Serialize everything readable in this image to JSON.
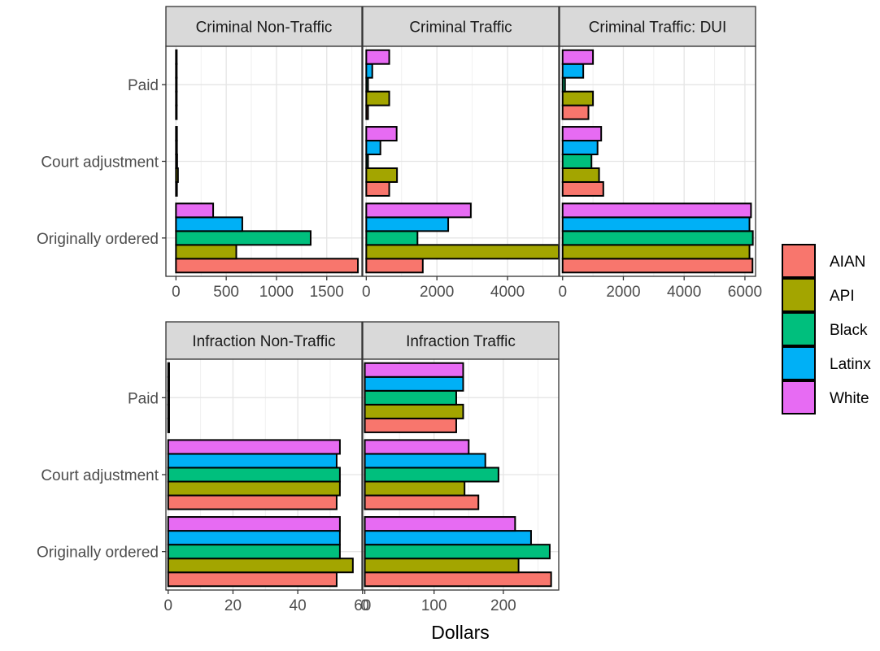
{
  "chart_data": {
    "type": "bar",
    "orientation": "horizontal",
    "xlabel": "Dollars",
    "ylabel": "",
    "grid": true,
    "legend_position": "right",
    "categories": [
      "Originally ordered",
      "Court adjustment",
      "Paid"
    ],
    "groups": [
      "AIAN",
      "API",
      "Black",
      "Latinx",
      "White"
    ],
    "colors": {
      "AIAN": "#F8766D",
      "API": "#A3A500",
      "Black": "#00BF7D",
      "Latinx": "#00B0F6",
      "White": "#E76BF3"
    },
    "legend": [
      {
        "name": "AIAN",
        "color": "#F8766D"
      },
      {
        "name": "API",
        "color": "#A3A500"
      },
      {
        "name": "Black",
        "color": "#00BF7D"
      },
      {
        "name": "Latinx",
        "color": "#00B0F6"
      },
      {
        "name": "White",
        "color": "#E76BF3"
      }
    ],
    "panels": [
      {
        "title": "Criminal Non-Traffic",
        "xlim": [
          -100,
          1850
        ],
        "xticks": [
          0,
          500,
          1000,
          1500
        ],
        "tick_labels": [
          "0",
          "500",
          "1000",
          "1500"
        ],
        "series": [
          {
            "name": "AIAN",
            "values": [
              1810,
              10,
              8
            ]
          },
          {
            "name": "API",
            "values": [
              600,
              20,
              8
            ]
          },
          {
            "name": "Black",
            "values": [
              1340,
              12,
              8
            ]
          },
          {
            "name": "Latinx",
            "values": [
              660,
              10,
              8
            ]
          },
          {
            "name": "White",
            "values": [
              370,
              10,
              8
            ]
          }
        ]
      },
      {
        "title": "Criminal Traffic",
        "xlim": [
          -100,
          5450
        ],
        "xticks": [
          0,
          2000,
          4000
        ],
        "tick_labels": [
          "0",
          "2000",
          "4000"
        ],
        "series": [
          {
            "name": "AIAN",
            "values": [
              1600,
              650,
              50
            ]
          },
          {
            "name": "API",
            "values": [
              5450,
              870,
              650
            ]
          },
          {
            "name": "Black",
            "values": [
              1450,
              50,
              50
            ]
          },
          {
            "name": "Latinx",
            "values": [
              2320,
              400,
              170
            ]
          },
          {
            "name": "White",
            "values": [
              2960,
              860,
              650
            ]
          }
        ]
      },
      {
        "title": "Criminal Traffic: DUI",
        "xlim": [
          -100,
          6350
        ],
        "xticks": [
          0,
          2000,
          4000,
          6000
        ],
        "tick_labels": [
          "0",
          "2000",
          "4000",
          "6000"
        ],
        "series": [
          {
            "name": "AIAN",
            "values": [
              6250,
              1340,
              850
            ]
          },
          {
            "name": "API",
            "values": [
              6150,
              1200,
              1000
            ]
          },
          {
            "name": "Black",
            "values": [
              6260,
              950,
              80
            ]
          },
          {
            "name": "Latinx",
            "values": [
              6150,
              1150,
              680
            ]
          },
          {
            "name": "White",
            "values": [
              6200,
              1270,
              1000
            ]
          }
        ]
      },
      {
        "title": "Infraction Non-Traffic",
        "xlim": [
          -0.7,
          59.8
        ],
        "xticks": [
          0,
          20,
          40,
          60
        ],
        "tick_labels": [
          "0",
          "20",
          "40",
          "60"
        ],
        "series": [
          {
            "name": "AIAN",
            "values": [
              52,
              52,
              0.3
            ]
          },
          {
            "name": "API",
            "values": [
              57,
              53,
              0.3
            ]
          },
          {
            "name": "Black",
            "values": [
              53,
              53,
              0.3
            ]
          },
          {
            "name": "Latinx",
            "values": [
              53,
              52,
              0.3
            ]
          },
          {
            "name": "White",
            "values": [
              53,
              53,
              0.3
            ]
          }
        ]
      },
      {
        "title": "Infraction Traffic",
        "xlim": [
          -3,
          280
        ],
        "xticks": [
          0,
          100,
          200
        ],
        "tick_labels": [
          "0",
          "100",
          "200"
        ],
        "series": [
          {
            "name": "AIAN",
            "values": [
              269,
              164,
              132
            ]
          },
          {
            "name": "API",
            "values": [
              222,
              144,
              142
            ]
          },
          {
            "name": "Black",
            "values": [
              267,
              193,
              132
            ]
          },
          {
            "name": "Latinx",
            "values": [
              240,
              174,
              142
            ]
          },
          {
            "name": "White",
            "values": [
              217,
              150,
              142
            ]
          }
        ]
      }
    ]
  }
}
